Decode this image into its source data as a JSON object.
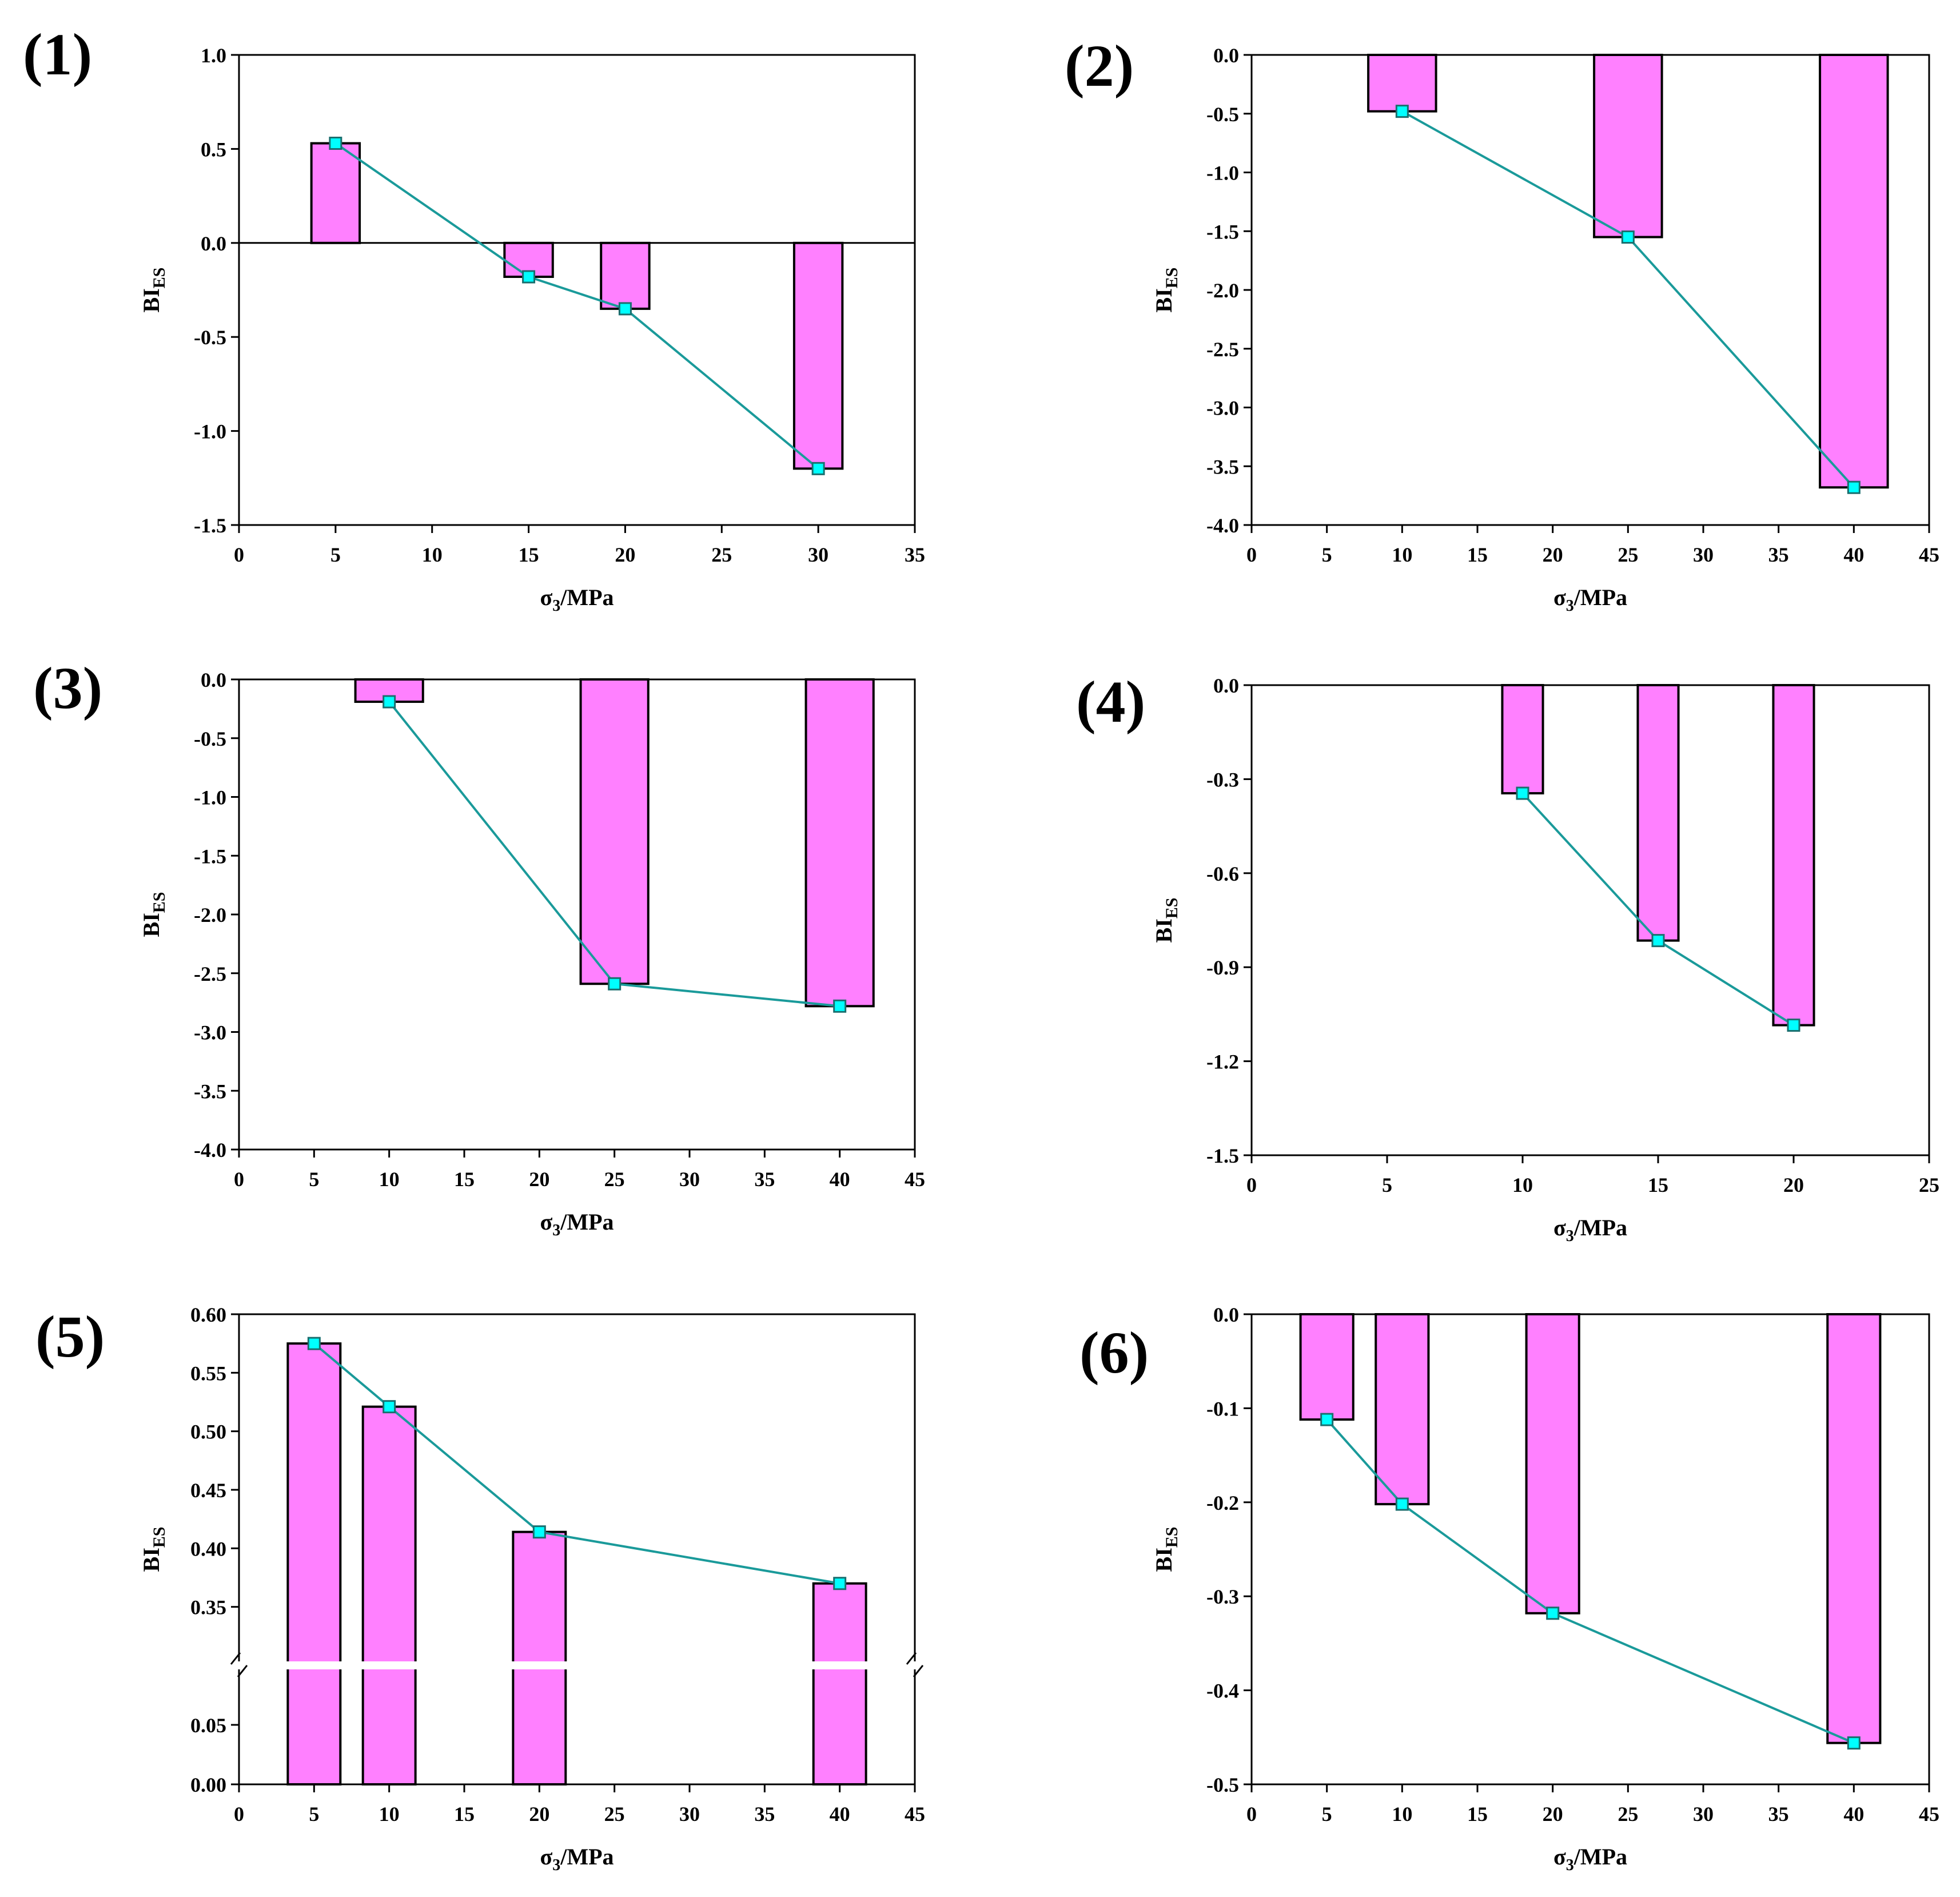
{
  "colors": {
    "bar_fill": "#ff80ff",
    "bar_stroke": "#000000",
    "line": "#1a9a9a",
    "marker_fill": "#00ffff",
    "marker_stroke": "#1a6e6e"
  },
  "chart_data": [
    {
      "panel": "(1)",
      "type": "bar+line",
      "xlabel": "σ3/MPa",
      "ylabel": "BIES",
      "xlim": [
        0,
        35
      ],
      "xticks": [
        0,
        5,
        10,
        15,
        20,
        25,
        30,
        35
      ],
      "ylim": [
        -1.5,
        1.0
      ],
      "yticks": [
        -1.5,
        -1.0,
        -0.5,
        0.0,
        0.5,
        1.0
      ],
      "ytick_labels": [
        "-1.5",
        "-1.0",
        "-0.5",
        "0.0",
        "0.5",
        "1.0"
      ],
      "bar_width": 2.5,
      "zero_line": true,
      "x": [
        5,
        15,
        20,
        30
      ],
      "values": [
        0.53,
        -0.18,
        -0.35,
        -1.2
      ]
    },
    {
      "panel": "(2)",
      "type": "bar+line",
      "xlabel": "σ3/MPa",
      "ylabel": "BIES",
      "xlim": [
        0,
        45
      ],
      "xticks": [
        0,
        5,
        10,
        15,
        20,
        25,
        30,
        35,
        40,
        45
      ],
      "ylim": [
        -4.0,
        0.0
      ],
      "yticks": [
        -4.0,
        -3.5,
        -3.0,
        -2.5,
        -2.0,
        -1.5,
        -1.0,
        -0.5,
        0.0
      ],
      "ytick_labels": [
        "-4.0",
        "-3.5",
        "-3.0",
        "-2.5",
        "-2.0",
        "-1.5",
        "-1.0",
        "-0.5",
        "0.0"
      ],
      "bar_width": 4.5,
      "zero_line": false,
      "x": [
        10,
        25,
        40
      ],
      "values": [
        -0.48,
        -1.55,
        -3.68
      ]
    },
    {
      "panel": "(3)",
      "type": "bar+line",
      "xlabel": "σ3/MPa",
      "ylabel": "BIES",
      "xlim": [
        0,
        45
      ],
      "xticks": [
        0,
        5,
        10,
        15,
        20,
        25,
        30,
        35,
        40,
        45
      ],
      "ylim": [
        -4.0,
        0.0
      ],
      "yticks": [
        -4.0,
        -3.5,
        -3.0,
        -2.5,
        -2.0,
        -1.5,
        -1.0,
        -0.5,
        0.0
      ],
      "ytick_labels": [
        "-4.0",
        "-3.5",
        "-3.0",
        "-2.5",
        "-2.0",
        "-1.5",
        "-1.0",
        "-0.5",
        "0.0"
      ],
      "bar_width": 4.5,
      "zero_line": false,
      "x": [
        10,
        25,
        40
      ],
      "values": [
        -0.19,
        -2.59,
        -2.78
      ]
    },
    {
      "panel": "(4)",
      "type": "bar+line",
      "xlabel": "σ3/MPa",
      "ylabel": "BIES",
      "xlim": [
        0,
        25
      ],
      "xticks": [
        0,
        5,
        10,
        15,
        20,
        25
      ],
      "ylim": [
        -1.5,
        0.0
      ],
      "yticks": [
        -1.5,
        -1.2,
        -0.9,
        -0.6,
        -0.3,
        0.0
      ],
      "ytick_labels": [
        "-1.5",
        "-1.2",
        "-0.9",
        "-0.6",
        "-0.3",
        "0.0"
      ],
      "bar_width": 1.5,
      "zero_line": false,
      "x": [
        10,
        15,
        20
      ],
      "values": [
        -0.345,
        -0.815,
        -1.085
      ]
    },
    {
      "panel": "(5)",
      "type": "bar+line",
      "broken_axis": true,
      "xlabel": "σ3/MPa",
      "ylabel": "BIES",
      "xlim": [
        0,
        45
      ],
      "xticks": [
        0,
        5,
        10,
        15,
        20,
        25,
        30,
        35,
        40,
        45
      ],
      "y_lower_range": [
        0.0,
        0.1
      ],
      "y_upper_range": [
        0.3,
        0.6
      ],
      "yticks": [
        0.0,
        0.05,
        0.35,
        0.4,
        0.45,
        0.5,
        0.55,
        0.6
      ],
      "ytick_labels": [
        "0.00",
        "0.05",
        "0.35",
        "0.40",
        "0.45",
        "0.50",
        "0.55",
        "0.60"
      ],
      "bar_width": 3.5,
      "x": [
        5,
        10,
        20,
        40
      ],
      "values": [
        0.575,
        0.521,
        0.414,
        0.37
      ]
    },
    {
      "panel": "(6)",
      "type": "bar+line",
      "xlabel": "σ3/MPa",
      "ylabel": "BIES",
      "xlim": [
        0,
        45
      ],
      "xticks": [
        0,
        5,
        10,
        15,
        20,
        25,
        30,
        35,
        40,
        45
      ],
      "ylim": [
        -0.5,
        0.0
      ],
      "yticks": [
        -0.5,
        -0.4,
        -0.3,
        -0.2,
        -0.1,
        0.0
      ],
      "ytick_labels": [
        "-0.5",
        "-0.4",
        "-0.3",
        "-0.2",
        "-0.1",
        "0.0"
      ],
      "bar_width": 3.5,
      "zero_line": false,
      "x": [
        5,
        10,
        20,
        40
      ],
      "values": [
        -0.112,
        -0.202,
        -0.318,
        -0.456
      ]
    }
  ]
}
